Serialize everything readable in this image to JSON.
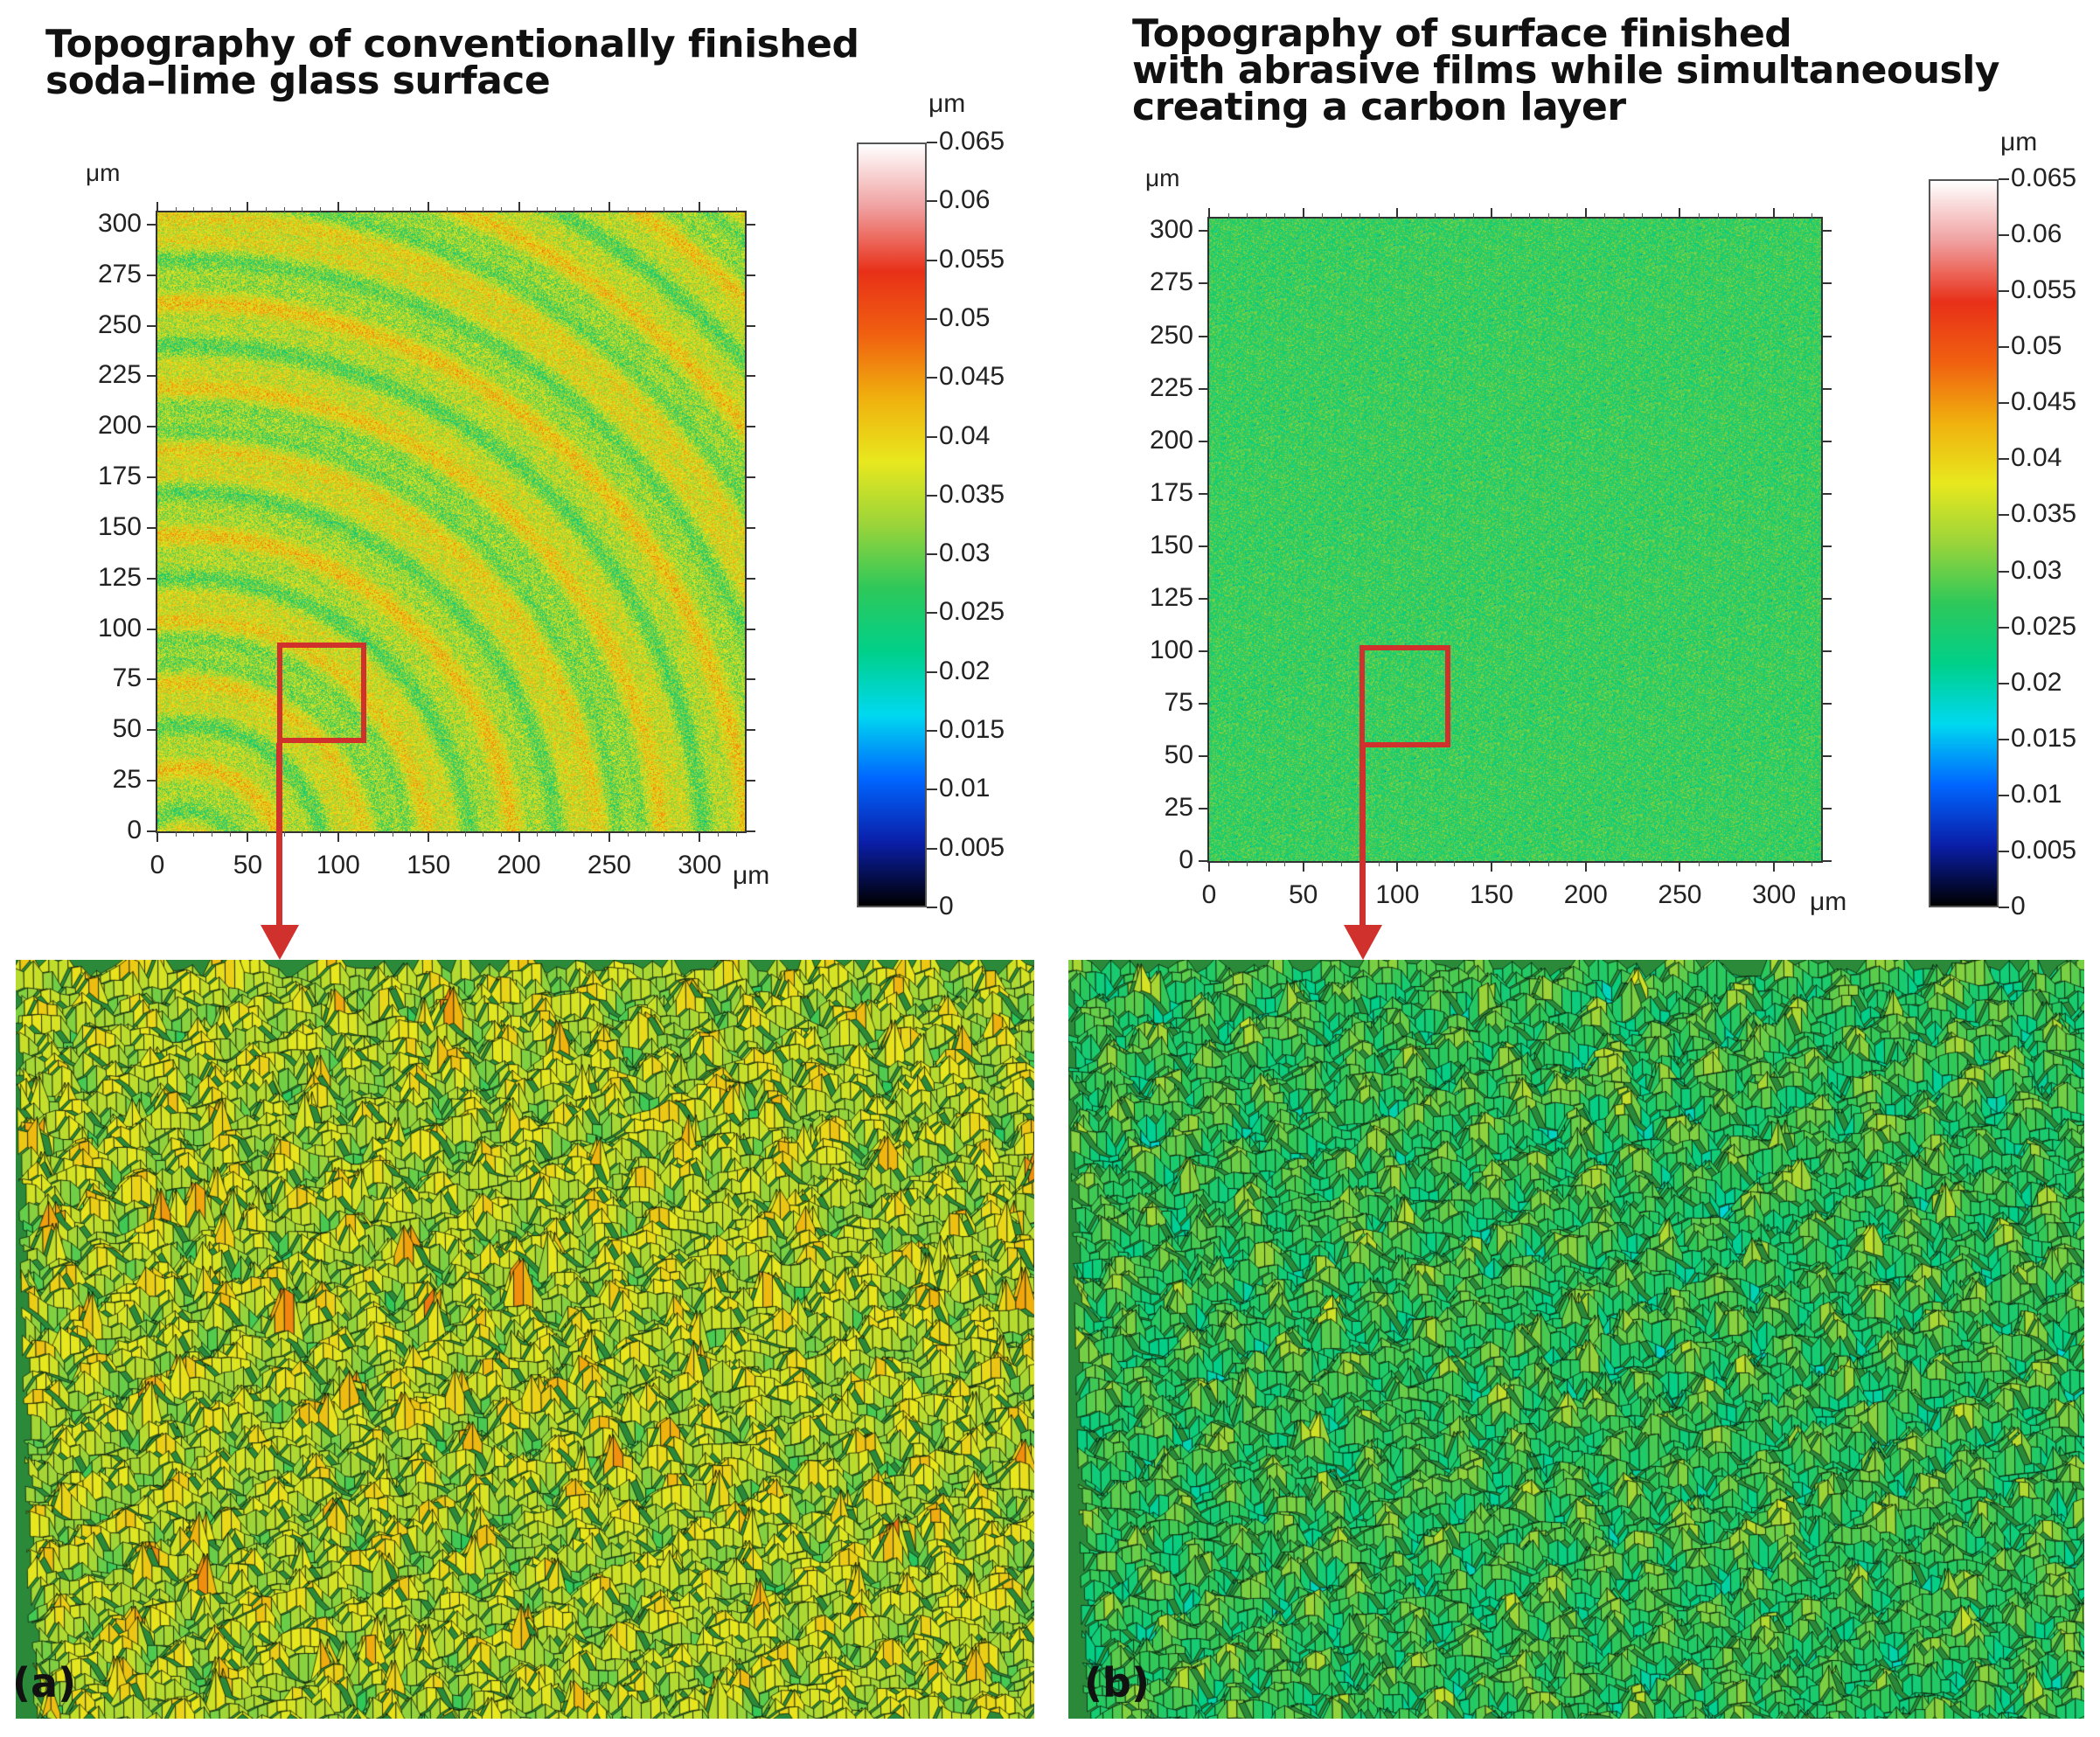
{
  "panels": [
    {
      "id": "a",
      "title_lines": [
        "Topography of conventionally finished",
        "soda–lime glass surface"
      ],
      "y_unit": "μm",
      "x_unit": "μm",
      "x_ticks": [
        "0",
        "50",
        "100",
        "150",
        "200",
        "250",
        "300"
      ],
      "y_ticks": [
        "300",
        "275",
        "250",
        "225",
        "200",
        "175",
        "150",
        "125",
        "100",
        "75",
        "50",
        "25",
        "0"
      ],
      "colorbar_unit": "μm",
      "colorbar_ticks": [
        "0.065",
        "0.06",
        "0.055",
        "0.05",
        "0.045",
        "0.04",
        "0.035",
        "0.03",
        "0.025",
        "0.02",
        "0.015",
        "0.01",
        "0.005",
        "0"
      ],
      "zoom_region_um": {
        "x": [
          68,
          115
        ],
        "y": [
          45,
          94
        ]
      },
      "dominant_height_um": 0.035,
      "letter": "(a)"
    },
    {
      "id": "b",
      "title_lines": [
        "Topography of surface finished",
        "with abrasive films while simultaneously",
        "creating a carbon layer"
      ],
      "y_unit": "μm",
      "x_unit": "μm",
      "x_ticks": [
        "0",
        "50",
        "100",
        "150",
        "200",
        "250",
        "300"
      ],
      "y_ticks": [
        "300",
        "275",
        "250",
        "225",
        "200",
        "175",
        "150",
        "125",
        "100",
        "75",
        "50",
        "25",
        "0"
      ],
      "colorbar_unit": "μm",
      "colorbar_ticks": [
        "0.065",
        "0.06",
        "0.055",
        "0.05",
        "0.045",
        "0.04",
        "0.035",
        "0.03",
        "0.025",
        "0.02",
        "0.015",
        "0.01",
        "0.005",
        "0"
      ],
      "zoom_region_um": {
        "x": [
          80,
          127
        ],
        "y": [
          55,
          103
        ]
      },
      "dominant_height_um": 0.027,
      "letter": "(b)"
    }
  ],
  "chart_data": [
    {
      "type": "heatmap",
      "title": "Topography of conventionally finished soda–lime glass surface",
      "xlabel": "μm",
      "ylabel": "μm",
      "xlim": [
        0,
        325
      ],
      "ylim": [
        0,
        306
      ],
      "x_ticks": [
        0,
        50,
        100,
        150,
        200,
        250,
        300
      ],
      "y_ticks": [
        0,
        25,
        50,
        75,
        100,
        125,
        150,
        175,
        200,
        225,
        250,
        275,
        300
      ],
      "colorbar": {
        "label": "μm",
        "range": [
          0,
          0.065
        ],
        "ticks": [
          0,
          0.005,
          0.01,
          0.015,
          0.02,
          0.025,
          0.03,
          0.035,
          0.04,
          0.045,
          0.05,
          0.055,
          0.06,
          0.065
        ]
      },
      "pattern": "concentric arc scratches",
      "typical_height_um": 0.035
    },
    {
      "type": "heatmap",
      "title": "Topography of surface finished with abrasive films while simultaneously creating a carbon layer",
      "xlabel": "μm",
      "ylabel": "μm",
      "xlim": [
        0,
        325
      ],
      "ylim": [
        0,
        306
      ],
      "x_ticks": [
        0,
        50,
        100,
        150,
        200,
        250,
        300
      ],
      "y_ticks": [
        0,
        25,
        50,
        75,
        100,
        125,
        150,
        175,
        200,
        225,
        250,
        275,
        300
      ],
      "colorbar": {
        "label": "μm",
        "range": [
          0,
          0.065
        ],
        "ticks": [
          0,
          0.005,
          0.01,
          0.015,
          0.02,
          0.025,
          0.03,
          0.035,
          0.04,
          0.045,
          0.05,
          0.055,
          0.06,
          0.065
        ]
      },
      "pattern": "uniform fine texture",
      "typical_height_um": 0.027
    }
  ],
  "colors": {
    "zoom_box": "#d0312d",
    "scale": [
      "#000000",
      "#0a1ea8",
      "#0066ff",
      "#00d8f0",
      "#00d08a",
      "#2ec85a",
      "#9ad43a",
      "#e8e81e",
      "#f0b00e",
      "#f06010",
      "#e83018",
      "#f0a0a0",
      "#ffffff"
    ]
  }
}
